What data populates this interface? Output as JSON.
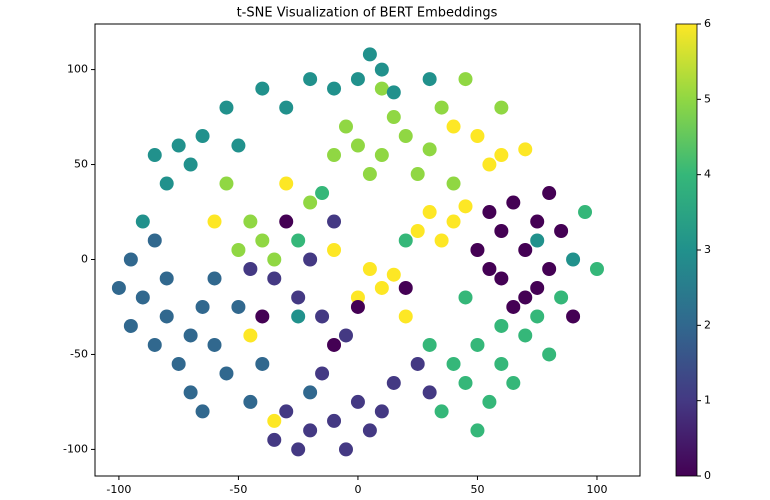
{
  "chart_data": {
    "type": "scatter",
    "title": "t-SNE Visualization of BERT Embeddings",
    "x": [
      30,
      40,
      35,
      45,
      25,
      5,
      10,
      0,
      15,
      60,
      55,
      70,
      50,
      40,
      -60,
      -30,
      -45,
      -35,
      -10,
      20,
      0,
      10,
      20,
      30,
      -5,
      15,
      25,
      5,
      -10,
      35,
      -40,
      -50,
      -45,
      -35,
      -55,
      45,
      60,
      -20,
      40,
      10,
      50,
      60,
      70,
      45,
      55,
      65,
      80,
      40,
      75,
      35,
      50,
      85,
      60,
      30,
      100,
      -15,
      -25,
      20,
      95,
      45,
      0,
      10,
      5,
      -10,
      15,
      -75,
      -85,
      -65,
      -80,
      -70,
      -30,
      -40,
      -20,
      -55,
      -90,
      -50,
      75,
      90,
      -25,
      30,
      -80,
      -70,
      -90,
      -75,
      -60,
      -85,
      -65,
      -55,
      -95,
      -70,
      -80,
      -60,
      -95,
      -100,
      -50,
      -45,
      -65,
      -85,
      -40,
      -20,
      -30,
      -20,
      -10,
      0,
      10,
      -25,
      -5,
      15,
      -35,
      -15,
      5,
      -25,
      -15,
      -35,
      -5,
      -20,
      -10,
      25,
      -45,
      30,
      60,
      70,
      55,
      65,
      75,
      80,
      70,
      60,
      85,
      50,
      65,
      90,
      75,
      55,
      0,
      -10,
      -40,
      20,
      80,
      -30
    ],
    "y": [
      25,
      20,
      10,
      28,
      15,
      -5,
      -15,
      -20,
      -8,
      55,
      50,
      58,
      65,
      70,
      20,
      40,
      -40,
      -85,
      5,
      -30,
      60,
      55,
      65,
      58,
      70,
      75,
      45,
      45,
      55,
      80,
      10,
      5,
      20,
      0,
      40,
      95,
      80,
      30,
      40,
      90,
      -45,
      -55,
      -40,
      -65,
      -75,
      -65,
      -50,
      -55,
      -30,
      -80,
      -90,
      -20,
      -35,
      -45,
      -5,
      35,
      10,
      10,
      25,
      -20,
      95,
      100,
      108,
      90,
      88,
      60,
      55,
      65,
      40,
      50,
      80,
      90,
      95,
      80,
      20,
      60,
      10,
      0,
      -30,
      95,
      -30,
      -40,
      -20,
      -55,
      -45,
      -45,
      -25,
      -60,
      -35,
      -70,
      -10,
      -10,
      0,
      -15,
      -25,
      -75,
      -80,
      10,
      -55,
      -70,
      -80,
      -90,
      -85,
      -75,
      -80,
      -100,
      -100,
      -65,
      -95,
      -60,
      -90,
      -20,
      -30,
      -10,
      -40,
      0,
      20,
      -55,
      -5,
      -70,
      15,
      5,
      25,
      30,
      20,
      -5,
      -20,
      -10,
      15,
      5,
      -25,
      -30,
      -15,
      -5,
      -25,
      -45,
      -30,
      -15,
      35,
      20
    ],
    "values": [
      6,
      6,
      6,
      6,
      6,
      6,
      6,
      6,
      6,
      6,
      6,
      6,
      6,
      6,
      6,
      6,
      6,
      6,
      6,
      6,
      5,
      5,
      5,
      5,
      5,
      5,
      5,
      5,
      5,
      5,
      5,
      5,
      5,
      5,
      5,
      5,
      5,
      5,
      5,
      5,
      4,
      4,
      4,
      4,
      4,
      4,
      4,
      4,
      4,
      4,
      4,
      4,
      4,
      4,
      4,
      4,
      4,
      4,
      4,
      4,
      3,
      3,
      3,
      3,
      3,
      3,
      3,
      3,
      3,
      3,
      3,
      3,
      3,
      3,
      3,
      3,
      3,
      3,
      3,
      3,
      2,
      2,
      2,
      2,
      2,
      2,
      2,
      2,
      2,
      2,
      2,
      2,
      2,
      2,
      2,
      2,
      2,
      2,
      2,
      2,
      1,
      1,
      1,
      1,
      1,
      1,
      1,
      1,
      1,
      1,
      1,
      1,
      1,
      1,
      1,
      1,
      1,
      1,
      1,
      1,
      0,
      0,
      0,
      0,
      0,
      0,
      0,
      0,
      0,
      0,
      0,
      0,
      0,
      0,
      0,
      0,
      0,
      0,
      0,
      0
    ],
    "xlim": [
      -110,
      118
    ],
    "ylim": [
      -114,
      124
    ],
    "xticks": [
      -100,
      -50,
      0,
      50,
      100
    ],
    "yticks": [
      -100,
      -50,
      0,
      50,
      100
    ],
    "clim": [
      0,
      6
    ],
    "cticks": [
      0,
      1,
      2,
      3,
      4,
      5,
      6
    ],
    "colormap": [
      "#440154",
      "#443983",
      "#31688e",
      "#21918c",
      "#35b779",
      "#90d743",
      "#fde725"
    ]
  }
}
